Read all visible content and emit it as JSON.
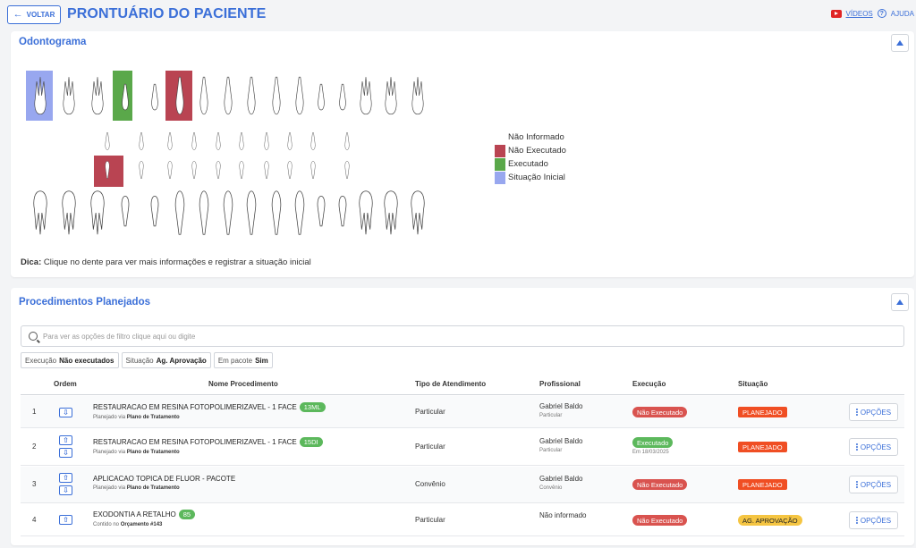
{
  "header": {
    "back_label": "VOLTAR",
    "title": "PRONTUÁRIO DO PACIENTE",
    "videos_label": "VÍDEOS",
    "help_label": "AJUDA"
  },
  "odontogram": {
    "title": "Odontograma",
    "legend": [
      {
        "label": "Não Informado",
        "color": "#ffffff"
      },
      {
        "label": "Não Executado",
        "color": "#b94452"
      },
      {
        "label": "Executado",
        "color": "#5aa84a"
      },
      {
        "label": "Situação Inicial",
        "color": "#98a7ef"
      }
    ],
    "tip_bold": "Dica:",
    "tip_text": " Clique no dente para ver mais informações e registrar a situação inicial"
  },
  "procedures": {
    "title": "Procedimentos Planejados",
    "search_placeholder": "Para ver as opções de filtro clique aqui ou digite",
    "filters": [
      {
        "key": "Execução",
        "value": "Não executados"
      },
      {
        "key": "Situação",
        "value": "Ag. Aprovação"
      },
      {
        "key": "Em pacote",
        "value": "Sim"
      }
    ],
    "columns": {
      "order": "Ordem",
      "name": "Nome Procedimento",
      "type": "Tipo de Atendimento",
      "professional": "Profissional",
      "execution": "Execução",
      "status": "Situação"
    },
    "rows": [
      {
        "index": "1",
        "name": "RESTAURACAO EM RESINA FOTOPOLIMERIZAVEL - 1 FACE",
        "tag": "13ML",
        "sub_prefix": "Planejado via ",
        "sub_bold": "Plano de Tratamento",
        "type": "Particular",
        "professional": "Gabriel Baldo",
        "professional_sub": "Particular",
        "execution": "Não Executado",
        "execution_date": "",
        "status": "PLANEJADO",
        "options": "OPÇÕES"
      },
      {
        "index": "2",
        "name": "RESTAURACAO EM RESINA FOTOPOLIMERIZAVEL - 1 FACE",
        "tag": "15DI",
        "sub_prefix": "Planejado via ",
        "sub_bold": "Plano de Tratamento",
        "type": "Particular",
        "professional": "Gabriel Baldo",
        "professional_sub": "Particular",
        "execution": "Executado",
        "execution_date": "Em 18/03/2025",
        "status": "PLANEJADO",
        "options": "OPÇÕES"
      },
      {
        "index": "3",
        "name": "APLICACAO TOPICA DE FLUOR - PACOTE",
        "tag": "",
        "sub_prefix": "Planejado via ",
        "sub_bold": "Plano de Tratamento",
        "type": "Convênio",
        "professional": "Gabriel Baldo",
        "professional_sub": "Convênio",
        "execution": "Não Executado",
        "execution_date": "",
        "status": "PLANEJADO",
        "options": "OPÇÕES"
      },
      {
        "index": "4",
        "name": "EXODONTIA A RETALHO",
        "tag": "85",
        "sub_prefix": "Contido no ",
        "sub_bold": "Orçamento #143",
        "type": "Particular",
        "professional": "Não informado",
        "professional_sub": "",
        "execution": "Não Executado",
        "execution_date": "",
        "status": "AG. APROVAÇÃO",
        "options": "OPÇÕES"
      }
    ]
  }
}
